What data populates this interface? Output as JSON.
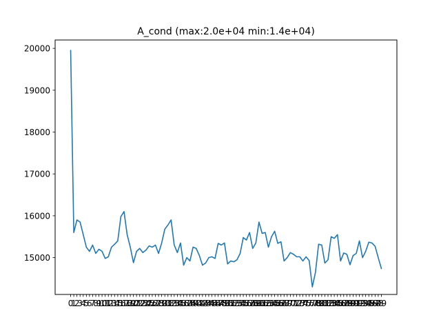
{
  "chart_data": {
    "type": "line",
    "title": "A_cond (max:2.0e+04 min:1.4e+04)",
    "xlabel": "",
    "ylabel": "",
    "x": [
      0,
      1,
      2,
      3,
      4,
      5,
      6,
      7,
      8,
      9,
      10,
      11,
      12,
      13,
      14,
      15,
      16,
      17,
      18,
      19,
      20,
      21,
      22,
      23,
      24,
      25,
      26,
      27,
      28,
      29,
      30,
      31,
      32,
      33,
      34,
      35,
      36,
      37,
      38,
      39,
      40,
      41,
      42,
      43,
      44,
      45,
      46,
      47,
      48,
      49,
      50,
      51,
      52,
      53,
      54,
      55,
      56,
      57,
      58,
      59,
      60,
      61,
      62,
      63,
      64,
      65,
      66,
      67,
      68,
      69,
      70,
      71,
      72,
      73,
      74,
      75,
      76,
      77,
      78,
      79,
      80,
      81,
      82,
      83,
      84,
      85,
      86,
      87,
      88,
      89,
      90,
      91,
      92,
      93,
      94,
      95,
      96,
      97,
      98,
      99
    ],
    "x_tick_labels": [
      "0",
      "1",
      "2",
      "3",
      "4",
      "5",
      "6",
      "7",
      "8",
      "9",
      "10",
      "11",
      "12",
      "13",
      "14",
      "15",
      "16",
      "17",
      "18",
      "19",
      "20",
      "21",
      "22",
      "23",
      "24",
      "25",
      "26",
      "27",
      "28",
      "29",
      "30",
      "31",
      "32",
      "33",
      "34",
      "35",
      "36",
      "37",
      "38",
      "39",
      "40",
      "41",
      "42",
      "43",
      "44",
      "45",
      "46",
      "47",
      "48",
      "49",
      "50",
      "51",
      "52",
      "53",
      "54",
      "55",
      "56",
      "57",
      "58",
      "59",
      "60",
      "61",
      "62",
      "63",
      "64",
      "65",
      "66",
      "67",
      "68",
      "69",
      "70",
      "71",
      "72",
      "73",
      "74",
      "75",
      "76",
      "77",
      "78",
      "79",
      "80",
      "81",
      "82",
      "83",
      "84",
      "85",
      "86",
      "87",
      "88",
      "89",
      "90",
      "91",
      "92",
      "93",
      "94",
      "95",
      "96",
      "97",
      "98",
      "99"
    ],
    "y_ticks": [
      15000,
      16000,
      17000,
      18000,
      19000,
      20000
    ],
    "xlim": [
      -4.95,
      103.95
    ],
    "ylim": [
      14120,
      20200
    ],
    "series": [
      {
        "color": "#1f77b4",
        "values": [
          19950,
          15600,
          15900,
          15850,
          15550,
          15250,
          15150,
          15300,
          15100,
          15200,
          15150,
          14980,
          15020,
          15250,
          15320,
          15400,
          15980,
          16100,
          15550,
          15250,
          14880,
          15150,
          15220,
          15120,
          15180,
          15280,
          15250,
          15300,
          15100,
          15350,
          15680,
          15780,
          15900,
          15300,
          15120,
          15350,
          14820,
          15000,
          14920,
          15250,
          15220,
          15050,
          14820,
          14870,
          15000,
          15020,
          14980,
          15340,
          15300,
          15350,
          14850,
          14920,
          14900,
          14950,
          15100,
          15480,
          15420,
          15600,
          15220,
          15350,
          15850,
          15580,
          15600,
          15250,
          15500,
          15630,
          15340,
          15380,
          14920,
          15000,
          15120,
          15080,
          15020,
          15020,
          14920,
          15020,
          14930,
          14300,
          14650,
          15320,
          15300,
          14870,
          14950,
          15500,
          15460,
          15550,
          14920,
          15110,
          15080,
          14830,
          15050,
          15100,
          15400,
          15000,
          15150,
          15370,
          15350,
          15270,
          15000,
          14740
        ]
      }
    ],
    "grid": false,
    "legend": "none"
  }
}
